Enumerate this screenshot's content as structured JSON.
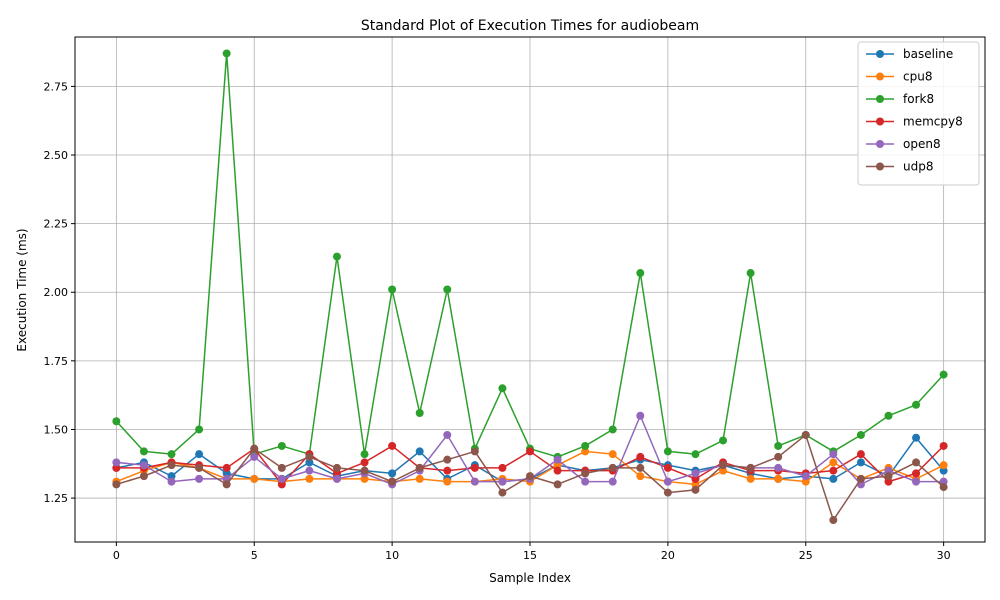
{
  "chart_data": {
    "type": "line",
    "title": "Standard Plot of Execution Times for audiobeam",
    "xlabel": "Sample Index",
    "ylabel": "Execution Time (ms)",
    "xlim": [
      -1.5,
      31.5
    ],
    "ylim": [
      1.09,
      2.93
    ],
    "xticks": [
      0,
      5,
      10,
      15,
      20,
      25,
      30
    ],
    "yticks": [
      1.25,
      1.5,
      1.75,
      2.0,
      2.25,
      2.5,
      2.75
    ],
    "ytick_labels": [
      "1.25",
      "1.50",
      "1.75",
      "2.00",
      "2.25",
      "2.50",
      "2.75"
    ],
    "grid": true,
    "legend_position": "top-right",
    "x": [
      0,
      1,
      2,
      3,
      4,
      5,
      6,
      7,
      8,
      9,
      10,
      11,
      12,
      13,
      14,
      15,
      16,
      17,
      18,
      19,
      20,
      21,
      22,
      23,
      24,
      25,
      26,
      27,
      28,
      29,
      30
    ],
    "series": [
      {
        "name": "baseline",
        "color": "#1f77b4",
        "values": [
          1.36,
          1.38,
          1.33,
          1.41,
          1.34,
          1.32,
          1.32,
          1.38,
          1.33,
          1.35,
          1.34,
          1.42,
          1.32,
          1.37,
          1.31,
          1.32,
          1.37,
          1.35,
          1.36,
          1.39,
          1.37,
          1.35,
          1.37,
          1.34,
          1.32,
          1.33,
          1.32,
          1.38,
          1.33,
          1.47,
          1.35
        ]
      },
      {
        "name": "cpu8",
        "color": "#ff7f0e",
        "values": [
          1.31,
          1.35,
          1.38,
          1.36,
          1.32,
          1.32,
          1.31,
          1.32,
          1.32,
          1.32,
          1.31,
          1.32,
          1.31,
          1.31,
          1.32,
          1.31,
          1.37,
          1.42,
          1.41,
          1.33,
          1.31,
          1.3,
          1.35,
          1.32,
          1.32,
          1.31,
          1.38,
          1.32,
          1.36,
          1.32,
          1.37
        ]
      },
      {
        "name": "fork8",
        "color": "#2ca02c",
        "values": [
          1.53,
          1.42,
          1.41,
          1.5,
          2.87,
          1.41,
          1.44,
          1.41,
          2.13,
          1.41,
          2.01,
          1.56,
          2.01,
          1.43,
          1.65,
          1.43,
          1.4,
          1.44,
          1.5,
          2.07,
          1.42,
          1.41,
          1.46,
          2.07,
          1.44,
          1.48,
          1.42,
          1.48,
          1.55,
          1.59,
          1.7
        ]
      },
      {
        "name": "memcpy8",
        "color": "#d62728",
        "values": [
          1.36,
          1.36,
          1.38,
          1.37,
          1.36,
          1.43,
          1.3,
          1.41,
          1.34,
          1.38,
          1.44,
          1.36,
          1.35,
          1.36,
          1.36,
          1.42,
          1.35,
          1.35,
          1.35,
          1.4,
          1.36,
          1.32,
          1.38,
          1.35,
          1.35,
          1.34,
          1.35,
          1.41,
          1.31,
          1.34,
          1.44
        ]
      },
      {
        "name": "open8",
        "color": "#9467bd",
        "values": [
          1.38,
          1.37,
          1.31,
          1.32,
          1.32,
          1.4,
          1.32,
          1.35,
          1.32,
          1.34,
          1.3,
          1.35,
          1.48,
          1.31,
          1.31,
          1.32,
          1.39,
          1.31,
          1.31,
          1.55,
          1.31,
          1.34,
          1.37,
          1.36,
          1.36,
          1.33,
          1.41,
          1.3,
          1.35,
          1.31,
          1.31
        ]
      },
      {
        "name": "udp8",
        "color": "#8c564b",
        "values": [
          1.3,
          1.33,
          1.37,
          1.36,
          1.3,
          1.43,
          1.36,
          1.4,
          1.36,
          1.35,
          1.31,
          1.36,
          1.39,
          1.42,
          1.27,
          1.33,
          1.3,
          1.34,
          1.36,
          1.36,
          1.27,
          1.28,
          1.37,
          1.36,
          1.4,
          1.48,
          1.17,
          1.32,
          1.33,
          1.38,
          1.29
        ]
      }
    ]
  }
}
